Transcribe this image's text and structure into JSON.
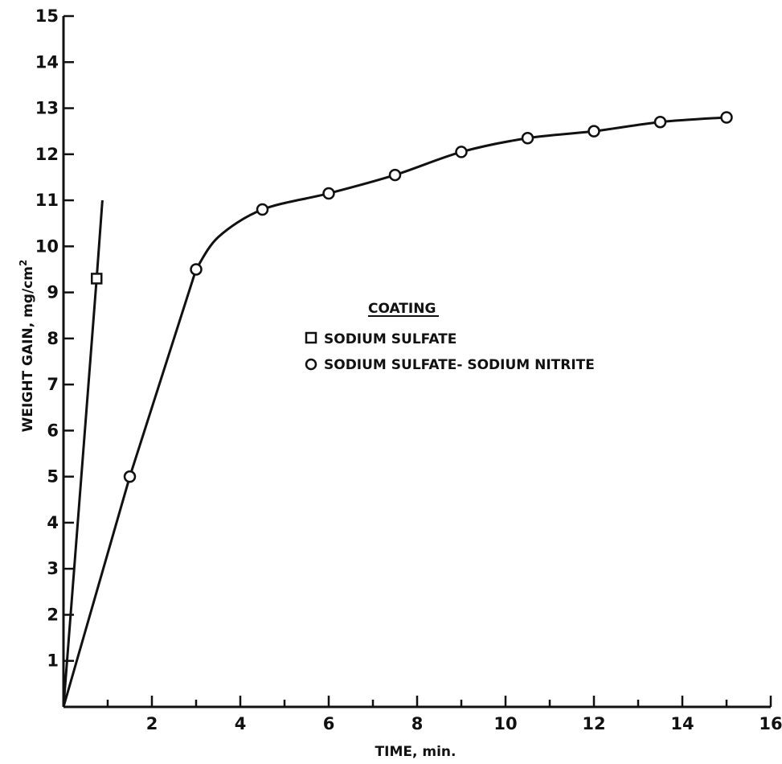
{
  "chart_data": {
    "type": "line",
    "xlabel": "TIME, min.",
    "ylabel": "WEIGHT GAIN, mg/cm",
    "ylabel_superscript": "2",
    "xlim": [
      0,
      16
    ],
    "ylim": [
      0,
      15
    ],
    "x_ticks": [
      2,
      4,
      6,
      8,
      10,
      12,
      14,
      16
    ],
    "y_ticks": [
      1,
      2,
      3,
      4,
      5,
      6,
      7,
      8,
      9,
      10,
      11,
      12,
      13,
      14,
      15
    ],
    "grid": false,
    "legend": {
      "title": "COATING",
      "placement": "center"
    },
    "series": [
      {
        "name": "SODIUM SULFATE",
        "marker": "square",
        "points": [
          [
            0.75,
            9.3
          ]
        ],
        "line": [
          [
            0,
            0
          ],
          [
            0.75,
            9.3
          ],
          [
            0.88,
            11.0
          ]
        ]
      },
      {
        "name": "SODIUM SULFATE- SODIUM NITRITE",
        "marker": "circle",
        "points": [
          [
            1.5,
            5.0
          ],
          [
            3.0,
            9.5
          ],
          [
            4.5,
            10.8
          ],
          [
            6.0,
            11.15
          ],
          [
            7.5,
            11.55
          ],
          [
            9.0,
            12.05
          ],
          [
            10.5,
            12.35
          ],
          [
            12.0,
            12.5
          ],
          [
            13.5,
            12.7
          ],
          [
            15.0,
            12.8
          ]
        ],
        "line": [
          [
            0,
            0
          ],
          [
            1.5,
            5.0
          ],
          [
            3.0,
            9.5
          ],
          [
            3.5,
            10.2
          ],
          [
            4.5,
            10.8
          ],
          [
            6.0,
            11.15
          ],
          [
            7.5,
            11.55
          ],
          [
            9.0,
            12.05
          ],
          [
            10.5,
            12.35
          ],
          [
            12.0,
            12.5
          ],
          [
            13.5,
            12.7
          ],
          [
            15.0,
            12.8
          ]
        ]
      }
    ]
  }
}
